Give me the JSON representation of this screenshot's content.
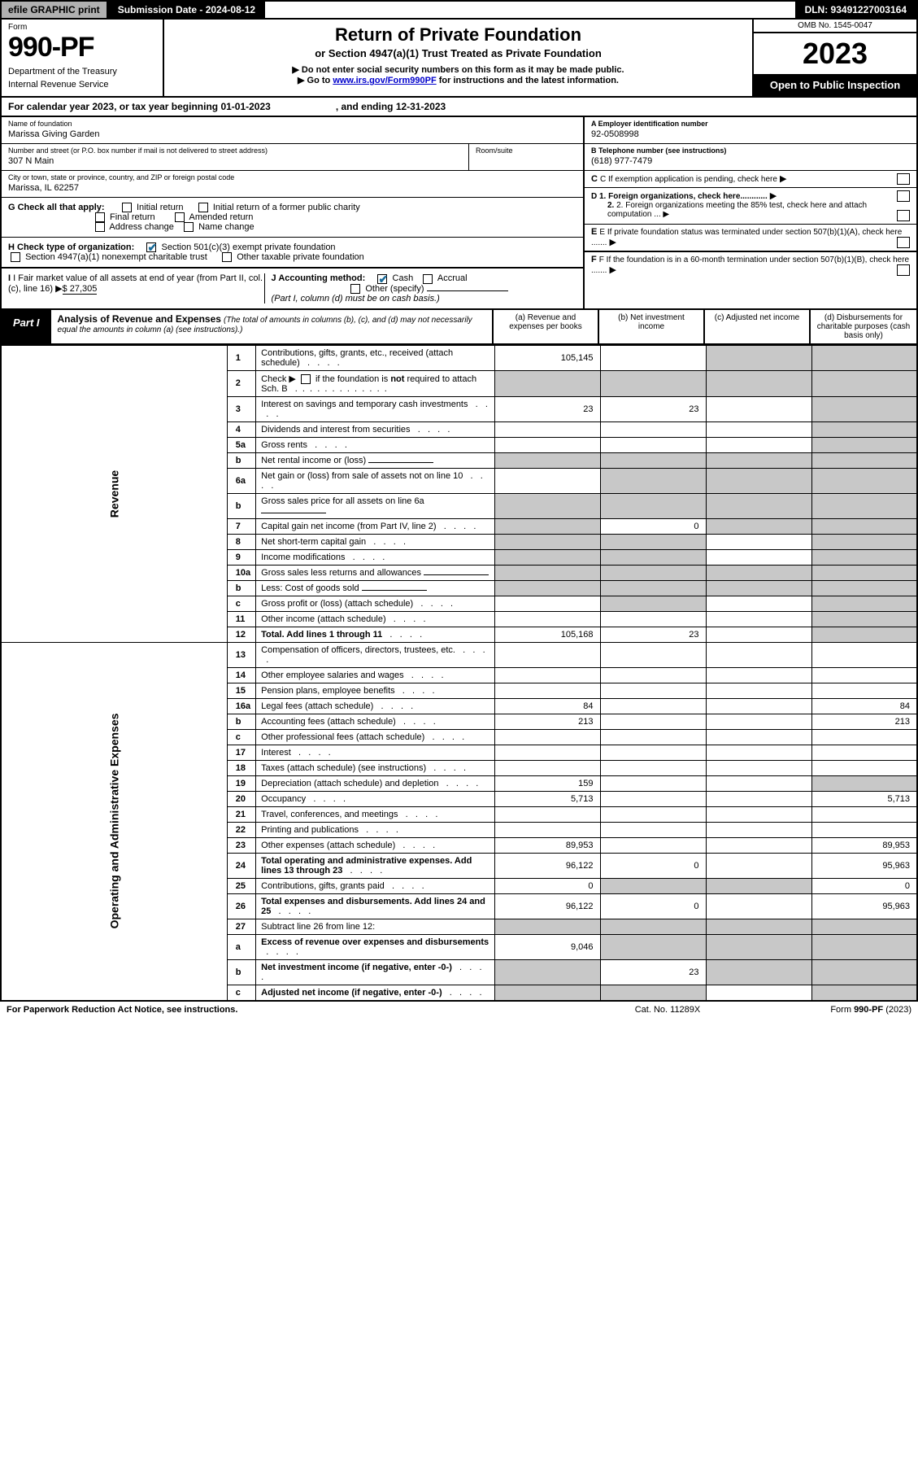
{
  "top": {
    "print": "efile GRAPHIC print",
    "submission": "Submission Date - 2024-08-12",
    "dln": "DLN: 93491227003164"
  },
  "header": {
    "form_label": "Form",
    "form_number": "990-PF",
    "dept1": "Department of the Treasury",
    "dept2": "Internal Revenue Service",
    "title": "Return of Private Foundation",
    "subtitle": "or Section 4947(a)(1) Trust Treated as Private Foundation",
    "note1": "▶ Do not enter social security numbers on this form as it may be made public.",
    "note2_pre": "▶ Go to ",
    "note2_link": "www.irs.gov/Form990PF",
    "note2_post": " for instructions and the latest information.",
    "omb": "OMB No. 1545-0047",
    "year": "2023",
    "open": "Open to Public Inspection"
  },
  "cal": {
    "text1": "For calendar year 2023, or tax year beginning 01-01-2023",
    "text2": ", and ending 12-31-2023"
  },
  "info": {
    "name_label": "Name of foundation",
    "name": "Marissa Giving Garden",
    "addr_label": "Number and street (or P.O. box number if mail is not delivered to street address)",
    "addr": "307 N Main",
    "room_label": "Room/suite",
    "city_label": "City or town, state or province, country, and ZIP or foreign postal code",
    "city": "Marissa, IL  62257",
    "ein_label": "A Employer identification number",
    "ein": "92-0508998",
    "phone_label": "B Telephone number (see instructions)",
    "phone": "(618) 977-7479",
    "c_text": "C If exemption application is pending, check here",
    "d1": "D 1. Foreign organizations, check here............",
    "d2": "2. Foreign organizations meeting the 85% test, check here and attach computation ...",
    "e_text": "E  If private foundation status was terminated under section 507(b)(1)(A), check here .......",
    "f_text": "F  If the foundation is in a 60-month termination under section 507(b)(1)(B), check here ......."
  },
  "checks": {
    "g_label": "G Check all that apply:",
    "g_opts": [
      "Initial return",
      "Initial return of a former public charity",
      "Final return",
      "Amended return",
      "Address change",
      "Name change"
    ],
    "h_label": "H Check type of organization:",
    "h_opt1": "Section 501(c)(3) exempt private foundation",
    "h_opt2": "Section 4947(a)(1) nonexempt charitable trust",
    "h_opt3": "Other taxable private foundation",
    "i_label": "I Fair market value of all assets at end of year (from Part II, col. (c), line 16)",
    "i_value": "$  27,305",
    "j_label": "J Accounting method:",
    "j_cash": "Cash",
    "j_accrual": "Accrual",
    "j_other": "Other (specify)",
    "j_note": "(Part I, column (d) must be on cash basis.)"
  },
  "part1": {
    "label": "Part I",
    "title": "Analysis of Revenue and Expenses",
    "title_note": "(The total of amounts in columns (b), (c), and (d) may not necessarily equal the amounts in column (a) (see instructions).)",
    "col_a": "(a)   Revenue and expenses per books",
    "col_b": "(b)   Net investment income",
    "col_c": "(c)   Adjusted net income",
    "col_d": "(d)   Disbursements for charitable purposes (cash basis only)"
  },
  "side_labels": {
    "revenue": "Revenue",
    "expenses": "Operating and Administrative Expenses"
  },
  "lines": [
    {
      "n": "1",
      "desc": "Contributions, gifts, grants, etc., received (attach schedule)",
      "a": "105,145",
      "b": "",
      "c": "",
      "d": "",
      "shade": [
        "c",
        "d"
      ]
    },
    {
      "n": "2",
      "desc": "Check ▶ ☐ if the foundation is not required to attach Sch. B",
      "nodots": true,
      "a": "",
      "b": "",
      "c": "",
      "d": "",
      "shade": [
        "a",
        "b",
        "c",
        "d"
      ]
    },
    {
      "n": "3",
      "desc": "Interest on savings and temporary cash investments",
      "a": "23",
      "b": "23",
      "c": "",
      "d": "",
      "shade": [
        "d"
      ]
    },
    {
      "n": "4",
      "desc": "Dividends and interest from securities",
      "a": "",
      "b": "",
      "c": "",
      "d": "",
      "shade": [
        "d"
      ]
    },
    {
      "n": "5a",
      "desc": "Gross rents",
      "a": "",
      "b": "",
      "c": "",
      "d": "",
      "shade": [
        "d"
      ]
    },
    {
      "n": "b",
      "desc": "Net rental income or (loss)",
      "a": "",
      "b": "",
      "c": "",
      "d": "",
      "shade": [
        "a",
        "b",
        "c",
        "d"
      ],
      "blank": true
    },
    {
      "n": "6a",
      "desc": "Net gain or (loss) from sale of assets not on line 10",
      "a": "",
      "b": "",
      "c": "",
      "d": "",
      "shade": [
        "b",
        "c",
        "d"
      ]
    },
    {
      "n": "b",
      "desc": "Gross sales price for all assets on line 6a",
      "a": "",
      "b": "",
      "c": "",
      "d": "",
      "shade": [
        "a",
        "b",
        "c",
        "d"
      ],
      "blank": true
    },
    {
      "n": "7",
      "desc": "Capital gain net income (from Part IV, line 2)",
      "a": "",
      "b": "0",
      "c": "",
      "d": "",
      "shade": [
        "a",
        "c",
        "d"
      ]
    },
    {
      "n": "8",
      "desc": "Net short-term capital gain",
      "a": "",
      "b": "",
      "c": "",
      "d": "",
      "shade": [
        "a",
        "b",
        "d"
      ]
    },
    {
      "n": "9",
      "desc": "Income modifications",
      "a": "",
      "b": "",
      "c": "",
      "d": "",
      "shade": [
        "a",
        "b",
        "d"
      ]
    },
    {
      "n": "10a",
      "desc": "Gross sales less returns and allowances",
      "a": "",
      "b": "",
      "c": "",
      "d": "",
      "shade": [
        "a",
        "b",
        "c",
        "d"
      ],
      "blank": true
    },
    {
      "n": "b",
      "desc": "Less: Cost of goods sold",
      "a": "",
      "b": "",
      "c": "",
      "d": "",
      "shade": [
        "a",
        "b",
        "c",
        "d"
      ],
      "blank": true
    },
    {
      "n": "c",
      "desc": "Gross profit or (loss) (attach schedule)",
      "a": "",
      "b": "",
      "c": "",
      "d": "",
      "shade": [
        "b",
        "d"
      ]
    },
    {
      "n": "11",
      "desc": "Other income (attach schedule)",
      "a": "",
      "b": "",
      "c": "",
      "d": "",
      "shade": [
        "d"
      ]
    },
    {
      "n": "12",
      "desc": "Total. Add lines 1 through 11",
      "bold": true,
      "a": "105,168",
      "b": "23",
      "c": "",
      "d": "",
      "shade": [
        "d"
      ]
    },
    {
      "n": "13",
      "desc": "Compensation of officers, directors, trustees, etc.",
      "a": "",
      "b": "",
      "c": "",
      "d": ""
    },
    {
      "n": "14",
      "desc": "Other employee salaries and wages",
      "a": "",
      "b": "",
      "c": "",
      "d": ""
    },
    {
      "n": "15",
      "desc": "Pension plans, employee benefits",
      "a": "",
      "b": "",
      "c": "",
      "d": ""
    },
    {
      "n": "16a",
      "desc": "Legal fees (attach schedule)",
      "a": "84",
      "b": "",
      "c": "",
      "d": "84"
    },
    {
      "n": "b",
      "desc": "Accounting fees (attach schedule)",
      "a": "213",
      "b": "",
      "c": "",
      "d": "213"
    },
    {
      "n": "c",
      "desc": "Other professional fees (attach schedule)",
      "a": "",
      "b": "",
      "c": "",
      "d": ""
    },
    {
      "n": "17",
      "desc": "Interest",
      "a": "",
      "b": "",
      "c": "",
      "d": ""
    },
    {
      "n": "18",
      "desc": "Taxes (attach schedule) (see instructions)",
      "a": "",
      "b": "",
      "c": "",
      "d": ""
    },
    {
      "n": "19",
      "desc": "Depreciation (attach schedule) and depletion",
      "a": "159",
      "b": "",
      "c": "",
      "d": "",
      "shade": [
        "d"
      ]
    },
    {
      "n": "20",
      "desc": "Occupancy",
      "a": "5,713",
      "b": "",
      "c": "",
      "d": "5,713"
    },
    {
      "n": "21",
      "desc": "Travel, conferences, and meetings",
      "a": "",
      "b": "",
      "c": "",
      "d": ""
    },
    {
      "n": "22",
      "desc": "Printing and publications",
      "a": "",
      "b": "",
      "c": "",
      "d": ""
    },
    {
      "n": "23",
      "desc": "Other expenses (attach schedule)",
      "a": "89,953",
      "b": "",
      "c": "",
      "d": "89,953"
    },
    {
      "n": "24",
      "desc": "Total operating and administrative expenses. Add lines 13 through 23",
      "bold": true,
      "a": "96,122",
      "b": "0",
      "c": "",
      "d": "95,963"
    },
    {
      "n": "25",
      "desc": "Contributions, gifts, grants paid",
      "a": "0",
      "b": "",
      "c": "",
      "d": "0",
      "shade": [
        "b",
        "c"
      ]
    },
    {
      "n": "26",
      "desc": "Total expenses and disbursements. Add lines 24 and 25",
      "bold": true,
      "a": "96,122",
      "b": "0",
      "c": "",
      "d": "95,963"
    },
    {
      "n": "27",
      "desc": "Subtract line 26 from line 12:",
      "a": "",
      "b": "",
      "c": "",
      "d": "",
      "shade": [
        "a",
        "b",
        "c",
        "d"
      ]
    },
    {
      "n": "a",
      "desc": "Excess of revenue over expenses and disbursements",
      "bold": true,
      "a": "9,046",
      "b": "",
      "c": "",
      "d": "",
      "shade": [
        "b",
        "c",
        "d"
      ]
    },
    {
      "n": "b",
      "desc": "Net investment income (if negative, enter -0-)",
      "bold": true,
      "a": "",
      "b": "23",
      "c": "",
      "d": "",
      "shade": [
        "a",
        "c",
        "d"
      ]
    },
    {
      "n": "c",
      "desc": "Adjusted net income (if negative, enter -0-)",
      "bold": true,
      "a": "",
      "b": "",
      "c": "",
      "d": "",
      "shade": [
        "a",
        "b",
        "d"
      ]
    }
  ],
  "footer": {
    "left": "For Paperwork Reduction Act Notice, see instructions.",
    "center": "Cat. No. 11289X",
    "right": "Form 990-PF (2023)"
  },
  "colors": {
    "header_black": "#000000",
    "shade": "#c8c8c8",
    "link": "#0000cc",
    "check": "#1a6b99"
  }
}
